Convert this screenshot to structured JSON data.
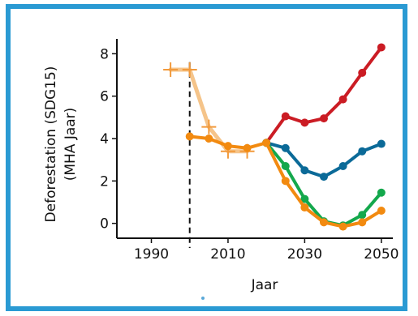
{
  "chart_data": {
    "type": "line",
    "xlabel": "Jaar",
    "ylabel_lines": [
      "Deforestation (SDG15)",
      "(MHA Jaar)"
    ],
    "xlim": [
      1981,
      2053
    ],
    "ylim": [
      -0.7,
      8.7
    ],
    "xticks": [
      1990,
      2010,
      2030,
      2050
    ],
    "yticks": [
      0,
      2,
      4,
      6,
      8
    ],
    "vline_x": 2000,
    "grid": false,
    "historical": {
      "color": "#f5c48a",
      "points": [
        [
          1995,
          7.25
        ],
        [
          2000,
          7.25
        ],
        [
          2005,
          4.55
        ],
        [
          2010,
          3.4
        ],
        [
          2015,
          3.4
        ]
      ]
    },
    "series": [
      {
        "color": "#cb1c24",
        "points": [
          [
            2020,
            3.8
          ],
          [
            2025,
            5.05
          ],
          [
            2030,
            4.75
          ],
          [
            2035,
            4.95
          ],
          [
            2040,
            5.85
          ],
          [
            2045,
            7.1
          ],
          [
            2050,
            8.3
          ]
        ]
      },
      {
        "color": "#0b6a98",
        "points": [
          [
            2020,
            3.8
          ],
          [
            2025,
            3.55
          ],
          [
            2030,
            2.5
          ],
          [
            2035,
            2.2
          ],
          [
            2040,
            2.7
          ],
          [
            2045,
            3.4
          ],
          [
            2050,
            3.75
          ]
        ]
      },
      {
        "color": "#14a84c",
        "points": [
          [
            2020,
            3.8
          ],
          [
            2025,
            2.7
          ],
          [
            2030,
            1.15
          ],
          [
            2035,
            0.1
          ],
          [
            2040,
            -0.1
          ],
          [
            2045,
            0.4
          ],
          [
            2050,
            1.45
          ]
        ]
      },
      {
        "color": "#f28a10",
        "points": [
          [
            2000,
            4.1
          ],
          [
            2005,
            4.0
          ],
          [
            2010,
            3.65
          ],
          [
            2015,
            3.55
          ],
          [
            2020,
            3.8
          ],
          [
            2025,
            2.0
          ],
          [
            2030,
            0.75
          ],
          [
            2035,
            0.05
          ],
          [
            2040,
            -0.15
          ],
          [
            2045,
            0.05
          ],
          [
            2050,
            0.6
          ]
        ]
      }
    ]
  }
}
